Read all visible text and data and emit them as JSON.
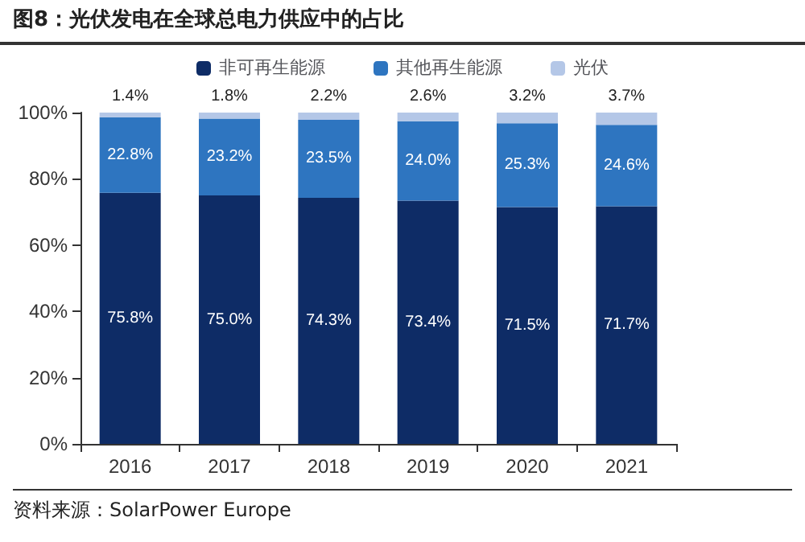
{
  "chart_data": {
    "type": "bar",
    "title": "图8：光伏发电在全球总电力供应中的占比",
    "stacked": true,
    "legend": "top",
    "grid": false,
    "categories": [
      "2016",
      "2017",
      "2018",
      "2019",
      "2020",
      "2021"
    ],
    "series": [
      {
        "name": "非可再生能源",
        "color": "#0e2c66",
        "values": [
          75.8,
          75.0,
          74.3,
          73.4,
          71.5,
          71.7
        ],
        "value_labels": [
          "75.8%",
          "75.0%",
          "74.3%",
          "73.4%",
          "71.5%",
          "71.7%"
        ]
      },
      {
        "name": "其他再生能源",
        "color": "#2e75c0",
        "values": [
          22.8,
          23.2,
          23.5,
          24.0,
          25.3,
          24.6
        ],
        "value_labels": [
          "22.8%",
          "23.2%",
          "23.5%",
          "24.0%",
          "25.3%",
          "24.6%"
        ]
      },
      {
        "name": "光伏",
        "color": "#b4c7e7",
        "values": [
          1.4,
          1.8,
          2.2,
          2.6,
          3.2,
          3.7
        ],
        "value_labels": [
          "1.4%",
          "1.8%",
          "2.2%",
          "2.6%",
          "3.2%",
          "3.7%"
        ]
      }
    ],
    "ylim": [
      0,
      100
    ],
    "yticks": [
      {
        "value": 0,
        "label": "0%"
      },
      {
        "value": 20,
        "label": "20%"
      },
      {
        "value": 40,
        "label": "40%"
      },
      {
        "value": 60,
        "label": "60%"
      },
      {
        "value": 80,
        "label": "80%"
      },
      {
        "value": 100,
        "label": "100%"
      }
    ],
    "annotations": [
      "资料来源：SolarPower Europe"
    ]
  }
}
